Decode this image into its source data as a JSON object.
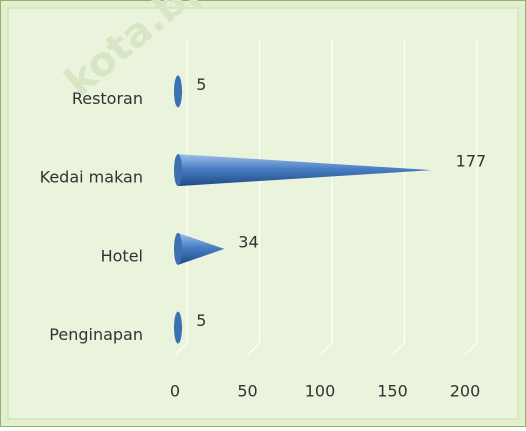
{
  "chart_data": {
    "type": "bar",
    "orientation": "horizontal",
    "style": "3d-cone",
    "categories": [
      "Restoran",
      "Kedai makan",
      "Hotel",
      "Penginapan"
    ],
    "values": [
      5,
      177,
      34,
      5
    ],
    "color": "#4a7fc4",
    "xlim": [
      0,
      200
    ],
    "xticks": [
      0,
      50,
      100,
      150,
      200
    ],
    "grid": true,
    "watermark": "kota.bps.go."
  }
}
